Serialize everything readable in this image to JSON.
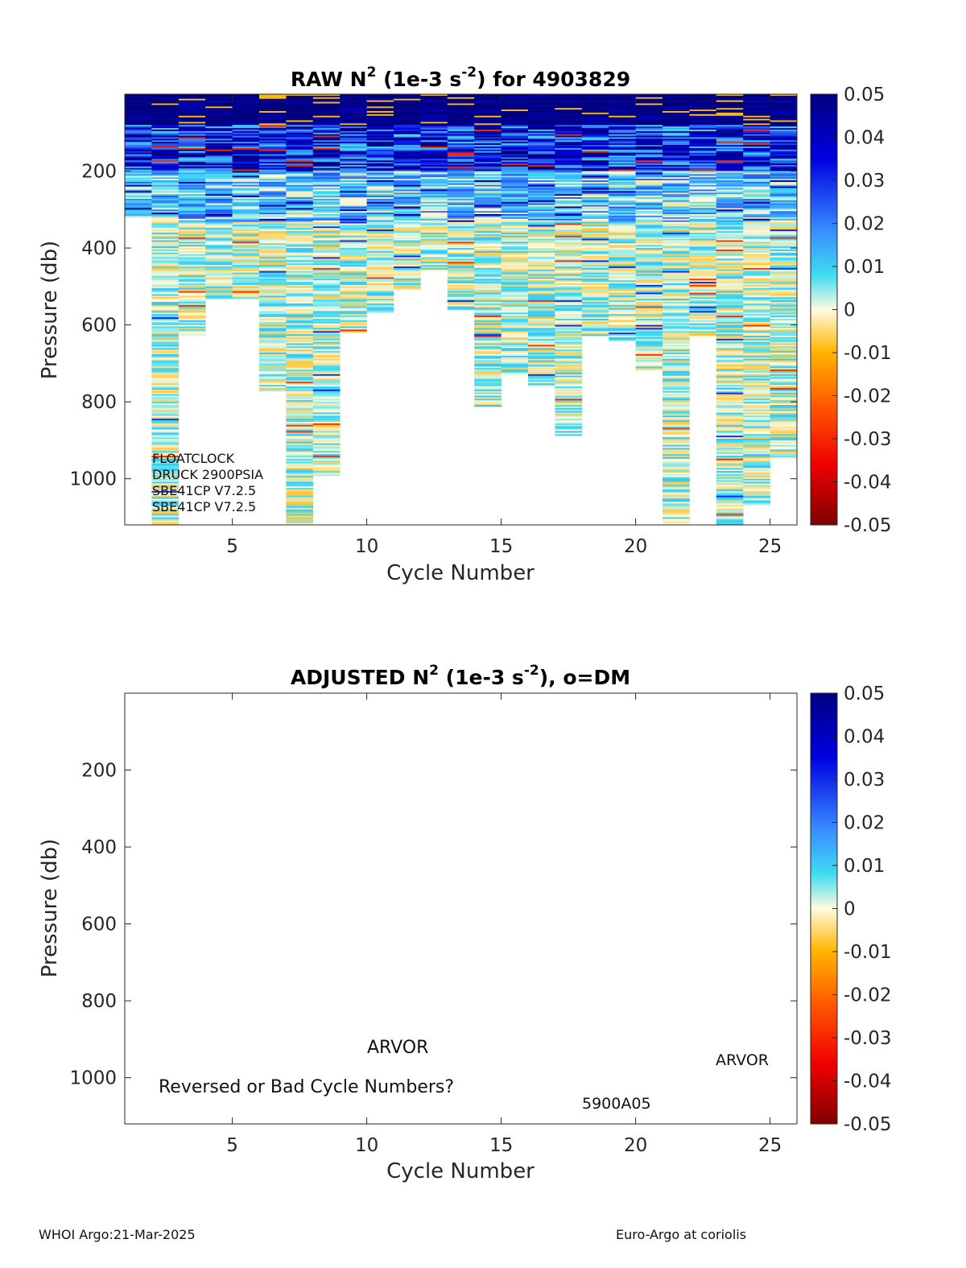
{
  "chart_data": [
    {
      "type": "heatmap",
      "title_parts": {
        "a": "RAW N",
        "sup1": "2",
        "b": " (1e-3 s",
        "sup2": "-2",
        "c": ") for 4903829"
      },
      "xlabel": "Cycle Number",
      "ylabel": "Pressure (db)",
      "xlim": [
        1,
        26
      ],
      "ylim": [
        0,
        1120
      ],
      "y_reversed": true,
      "xticks": [
        5,
        10,
        15,
        20,
        25
      ],
      "yticks": [
        200,
        400,
        600,
        800,
        1000
      ],
      "clim": [
        -0.05,
        0.05
      ],
      "colorbar_ticks": [
        0.05,
        0.04,
        0.03,
        0.02,
        0.01,
        0,
        -0.01,
        -0.02,
        -0.03,
        -0.04,
        -0.05
      ],
      "colorbar_tick_labels": [
        "0.05",
        "0.04",
        "0.03",
        "0.02",
        "0.01",
        "0",
        "-0.01",
        "-0.02",
        "-0.03",
        "-0.04",
        "-0.05"
      ],
      "cycles": [
        1,
        2,
        3,
        4,
        5,
        6,
        7,
        8,
        9,
        10,
        11,
        12,
        13,
        14,
        15,
        16,
        17,
        18,
        19,
        20,
        21,
        22,
        23,
        24,
        25
      ],
      "max_pressure": [
        320,
        1120,
        625,
        530,
        530,
        770,
        1120,
        990,
        620,
        565,
        505,
        460,
        560,
        810,
        730,
        760,
        885,
        625,
        640,
        715,
        1120,
        630,
        1120,
        1065,
        945
      ],
      "annotations": [
        "FLOATCLOCK",
        "DRUCK 2900PSIA",
        "SBE41CP V7.2.5",
        "SBE41CP V7.2.5"
      ]
    },
    {
      "type": "heatmap",
      "title_parts": {
        "a": "ADJUSTED N",
        "sup1": "2",
        "b": " (1e-3 s",
        "sup2": "-2",
        "c": "), o=DM"
      },
      "xlabel": "Cycle Number",
      "ylabel": "Pressure (db)",
      "xlim": [
        1,
        26
      ],
      "ylim": [
        0,
        1120
      ],
      "y_reversed": true,
      "xticks": [
        5,
        10,
        15,
        20,
        25
      ],
      "yticks": [
        200,
        400,
        600,
        800,
        1000
      ],
      "clim": [
        -0.05,
        0.05
      ],
      "colorbar_ticks": [
        0.05,
        0.04,
        0.03,
        0.02,
        0.01,
        0,
        -0.01,
        -0.02,
        -0.03,
        -0.04,
        -0.05
      ],
      "colorbar_tick_labels": [
        "0.05",
        "0.04",
        "0.03",
        "0.02",
        "0.01",
        "0",
        "-0.01",
        "-0.02",
        "-0.03",
        "-0.04",
        "-0.05"
      ],
      "annotations": [
        {
          "text": "ARVOR",
          "x": 11.3,
          "y": 920
        },
        {
          "text": "Reversed or Bad Cycle Numbers?",
          "x": 2.3,
          "y": 1020
        },
        {
          "text": "5900A05",
          "x": 18.0,
          "y": 1070
        },
        {
          "text": "ARVOR",
          "x": 23.0,
          "y": 955
        }
      ],
      "values": []
    }
  ],
  "footer": {
    "left": "WHOI Argo:21-Mar-2025",
    "right": "Euro-Argo at coriolis"
  }
}
